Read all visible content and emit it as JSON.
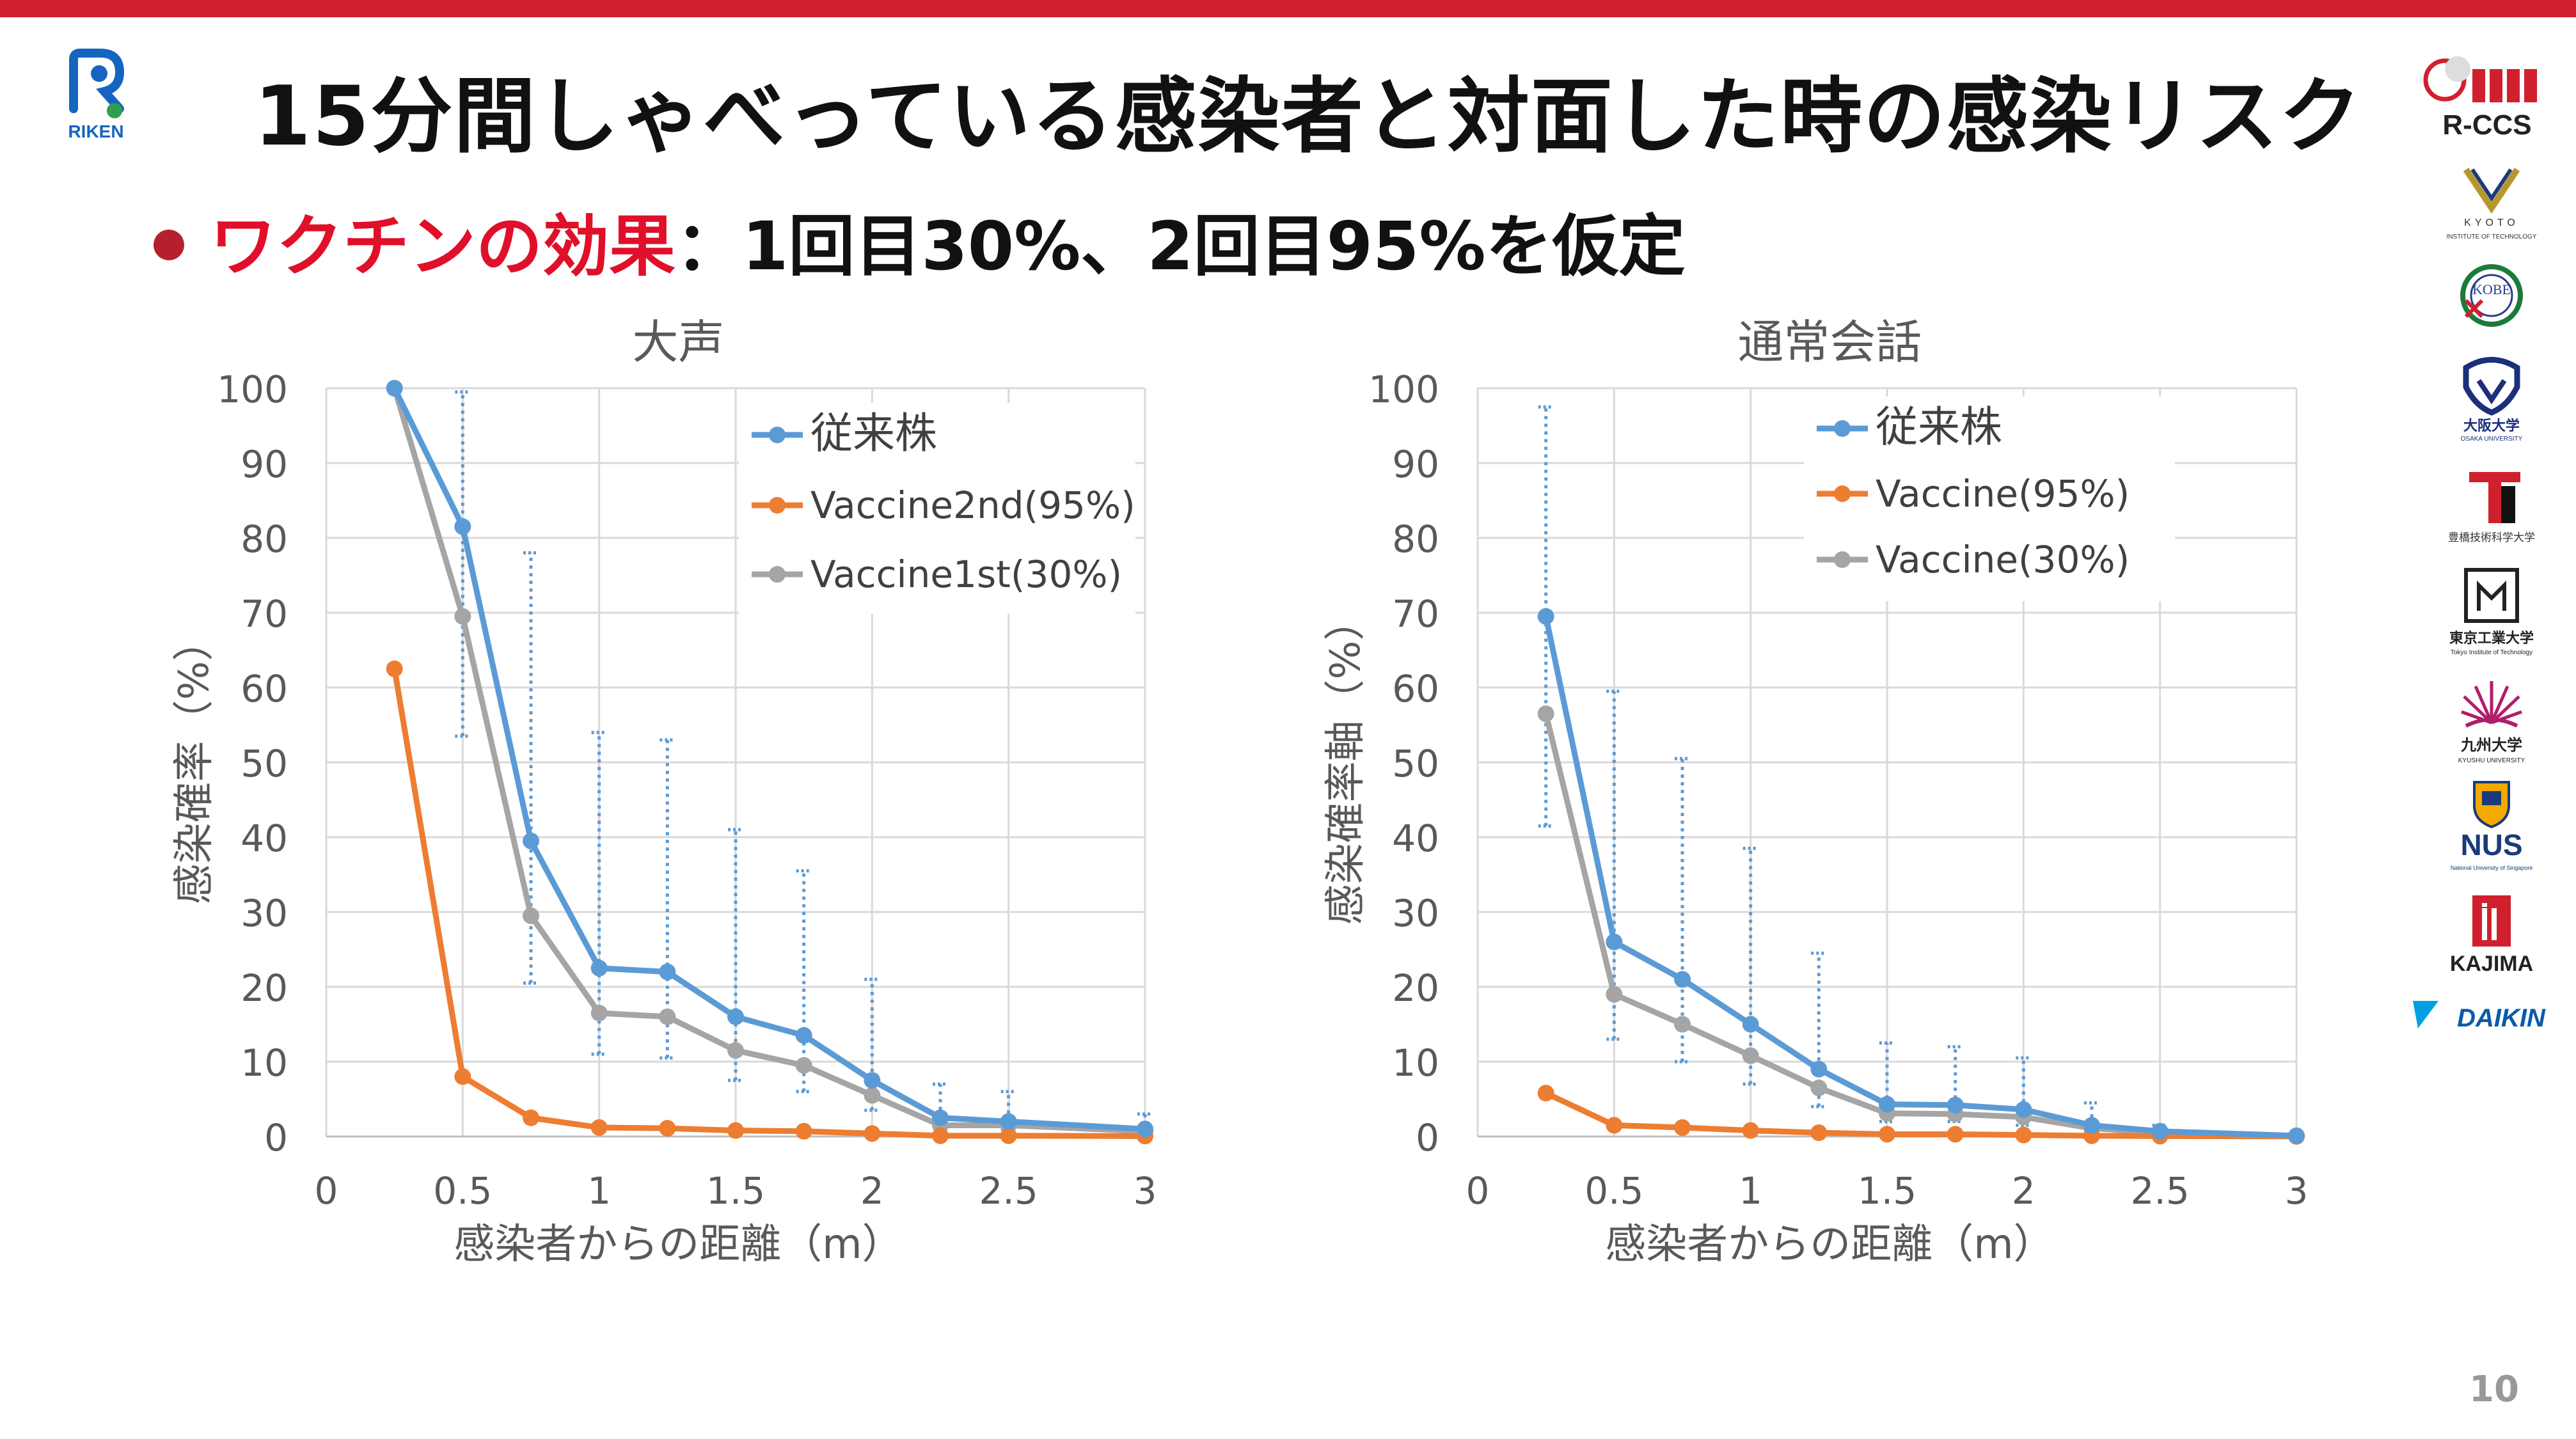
{
  "page": {
    "title": "15分間しゃべっている感染者と対面した時の感染リスク",
    "bullet_highlight": "ワクチンの効果",
    "bullet_rest": "：1回目30%、2回目95%を仮定",
    "page_number": "10",
    "riken_logo_text": "RIKEN"
  },
  "logos": {
    "rccs": "R-CCS",
    "kyoto": "KYOTO",
    "kyoto_sub": "INSTITUTE OF TECHNOLOGY",
    "kobe": "KOBE",
    "osaka": "大阪大学",
    "osaka_sub": "OSAKA UNIVERSITY",
    "toyohashi": "豊橋技術科学大学",
    "tokyotech": "東京工業大学",
    "tokyotech_sub": "Tokyo Institute of Technology",
    "kyushu": "九州大学",
    "kyushu_sub": "KYUSHU UNIVERSITY",
    "nus": "NUS",
    "nus_sub": "National University of Singapore",
    "kajima": "KAJIMA",
    "daikin": "DAIKIN"
  },
  "colors": {
    "accent_red": "#e0102a",
    "bar_red": "#d0202e",
    "series_blue": "#5b9bd5",
    "series_orange": "#ed7d31",
    "series_gray": "#a5a5a5"
  },
  "chart_data": [
    {
      "type": "line",
      "title": "大声",
      "xlabel": "感染者からの距離（m）",
      "ylabel": "感染確率（%）",
      "xlim": [
        0,
        3
      ],
      "ylim": [
        0,
        100
      ],
      "xticks": [
        "0",
        "0.5",
        "1",
        "1.5",
        "2",
        "2.5",
        "3"
      ],
      "yticks": [
        "0",
        "10",
        "20",
        "30",
        "40",
        "50",
        "60",
        "70",
        "80",
        "90",
        "100"
      ],
      "grid": true,
      "legend_position": "top-right",
      "x": [
        0.25,
        0.5,
        0.75,
        1.0,
        1.25,
        1.5,
        1.75,
        2.0,
        2.25,
        2.5,
        3.0
      ],
      "series": [
        {
          "name": "従来株",
          "color": "#5b9bd5",
          "values": [
            100,
            81.5,
            39.5,
            22.5,
            22,
            16,
            13.5,
            7.5,
            2.5,
            2,
            1
          ],
          "error_low": [
            null,
            53.5,
            20.5,
            11,
            10.5,
            7.5,
            6,
            3.5,
            1.5,
            1,
            0.5
          ],
          "error_high": [
            null,
            99.5,
            78,
            54,
            53,
            41,
            35.5,
            21,
            7,
            6,
            3
          ]
        },
        {
          "name": "Vaccine2nd(95%)",
          "color": "#ed7d31",
          "values": [
            62.5,
            8,
            2.5,
            1.2,
            1.1,
            0.8,
            0.7,
            0.4,
            0.1,
            0.1,
            0.05
          ]
        },
        {
          "name": "Vaccine1st(30%)",
          "color": "#a5a5a5",
          "values": [
            100,
            69.5,
            29.5,
            16.5,
            16,
            11.5,
            9.5,
            5.5,
            1.5,
            1.5,
            0.7
          ]
        }
      ]
    },
    {
      "type": "line",
      "title": "通常会話",
      "xlabel": "感染者からの距離（m）",
      "ylabel": "感染確率軸（%）",
      "xlim": [
        0,
        3
      ],
      "ylim": [
        0,
        100
      ],
      "xticks": [
        "0",
        "0.5",
        "1",
        "1.5",
        "2",
        "2.5",
        "3"
      ],
      "yticks": [
        "0",
        "10",
        "20",
        "30",
        "40",
        "50",
        "60",
        "70",
        "80",
        "90",
        "100"
      ],
      "grid": true,
      "legend_position": "top-right",
      "x": [
        0.25,
        0.5,
        0.75,
        1.0,
        1.25,
        1.5,
        1.75,
        2.0,
        2.25,
        2.5,
        3.0
      ],
      "series": [
        {
          "name": "従来株",
          "color": "#5b9bd5",
          "values": [
            69.5,
            26,
            21,
            15,
            9,
            4.3,
            4.2,
            3.6,
            1.5,
            0.7,
            0.1
          ],
          "error_low": [
            41.5,
            13,
            10,
            7,
            4,
            2,
            2,
            1.5,
            0.5,
            0.3,
            null
          ],
          "error_high": [
            97.5,
            59.5,
            50.5,
            38.5,
            24.5,
            12.5,
            12,
            10.5,
            4.5,
            1.5,
            null
          ]
        },
        {
          "name": "Vaccine(95%)",
          "color": "#ed7d31",
          "values": [
            5.8,
            1.5,
            1.2,
            0.8,
            0.5,
            0.3,
            0.3,
            0.2,
            0.1,
            0.05,
            0.01
          ]
        },
        {
          "name": "Vaccine(30%)",
          "color": "#a5a5a5",
          "values": [
            56.5,
            19,
            15,
            10.8,
            6.5,
            3.1,
            3.0,
            2.6,
            1.1,
            0.5,
            0.05
          ]
        }
      ]
    }
  ]
}
